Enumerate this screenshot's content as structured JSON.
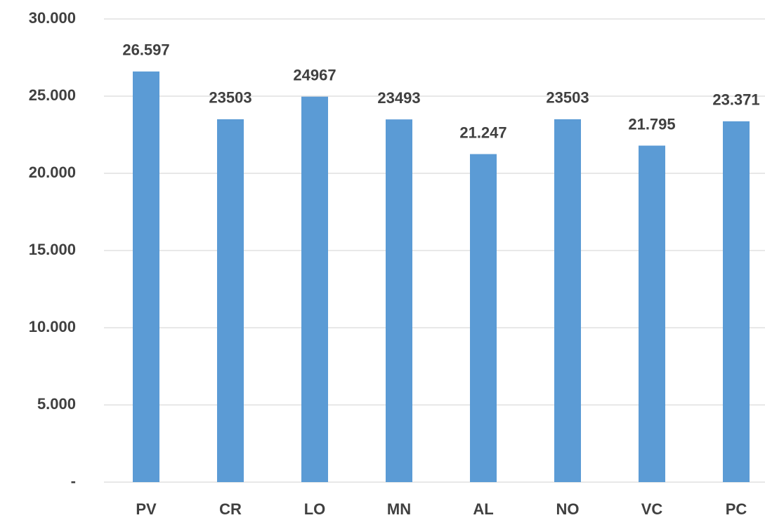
{
  "chart_data": {
    "type": "bar",
    "categories": [
      "PV",
      "CR",
      "LO",
      "MN",
      "AL",
      "NO",
      "VC",
      "PC"
    ],
    "values": [
      26597,
      23503,
      24967,
      23493,
      21247,
      23503,
      21795,
      23371
    ],
    "value_labels": [
      "26.597",
      "23503",
      "24967",
      "23493",
      "21.247",
      "23503",
      "21.795",
      "23.371"
    ],
    "color": "#5b9bd5",
    "ylim": [
      0,
      30000
    ],
    "yticks": [
      {
        "value": 0,
        "label": "-"
      },
      {
        "value": 5000,
        "label": "5.000"
      },
      {
        "value": 10000,
        "label": "10.000"
      },
      {
        "value": 15000,
        "label": "15.000"
      },
      {
        "value": 20000,
        "label": "20.000"
      },
      {
        "value": 25000,
        "label": "25.000"
      },
      {
        "value": 30000,
        "label": "30.000"
      }
    ],
    "grid": true
  }
}
